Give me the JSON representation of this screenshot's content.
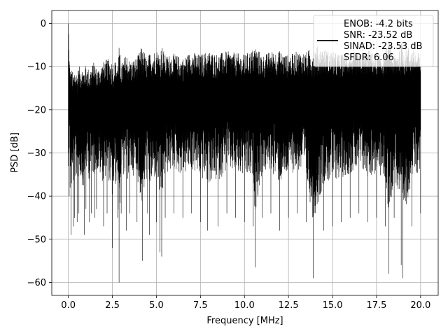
{
  "chart_data": {
    "type": "line",
    "title": "",
    "xlabel": "Frequency [MHz]",
    "ylabel": "PSD [dB]",
    "xlim": [
      -0.94,
      21.0
    ],
    "ylim": [
      -63.0,
      3.0
    ],
    "xticks": [
      0.0,
      2.5,
      5.0,
      7.5,
      10.0,
      12.5,
      15.0,
      17.5,
      20.0
    ],
    "xtick_labels": [
      "0.0",
      "2.5",
      "5.0",
      "7.5",
      "10.0",
      "12.5",
      "15.0",
      "17.5",
      "20.0"
    ],
    "yticks": [
      0,
      -10,
      -20,
      -30,
      -40,
      -50,
      -60
    ],
    "ytick_labels": [
      "0",
      "−10",
      "−20",
      "−30",
      "−40",
      "−50",
      "−60"
    ],
    "grid": true,
    "legend_position": "top-right",
    "legend_lines": [
      "ENOB: -4.2 bits",
      "SNR: -23.52 dB",
      "SINAD: -23.53 dB",
      "SFDR: 6.06"
    ],
    "series_color": "#000000",
    "series": [
      {
        "x": [
          0.0,
          0.02,
          0.05,
          0.1,
          0.15,
          0.3,
          0.35,
          0.5,
          0.6,
          0.9,
          1.0,
          1.2,
          1.3,
          1.5,
          1.6,
          2.0,
          2.2,
          2.5,
          2.8,
          2.88,
          3.0,
          3.3,
          3.5,
          3.9,
          4.2,
          4.5,
          4.6,
          5.0,
          5.2,
          5.3,
          5.5,
          6.0,
          6.5,
          7.0,
          7.5,
          7.9,
          8.5,
          9.0,
          9.5,
          10.0,
          10.5,
          10.6,
          11.0,
          11.5,
          12.0,
          12.5,
          13.0,
          13.5,
          13.9,
          14.5,
          15.0,
          15.5,
          16.0,
          16.5,
          17.0,
          17.5,
          18.0,
          18.2,
          18.5,
          18.9,
          19.0,
          19.5,
          20.0
        ],
        "y_upper": [
          0.0,
          -8.0,
          -12.0,
          -15.0,
          -16.0,
          -17.0,
          -15.5,
          -16.5,
          -15.0,
          -16.0,
          -14.5,
          -16.0,
          -15.0,
          -14.0,
          -15.5,
          -14.5,
          -13.5,
          -15.0,
          -14.0,
          -13.5,
          -14.5,
          -13.0,
          -14.0,
          -13.5,
          -12.5,
          -14.0,
          -13.0,
          -12.0,
          -13.5,
          -12.0,
          -13.0,
          -12.5,
          -13.5,
          -12.0,
          -13.0,
          -12.5,
          -13.0,
          -12.0,
          -12.5,
          -13.0,
          -12.0,
          -12.5,
          -13.0,
          -12.0,
          -12.5,
          -13.0,
          -12.0,
          -12.5,
          -13.0,
          -12.0,
          -12.5,
          -13.0,
          -12.0,
          -12.5,
          -12.0,
          -13.0,
          -12.5,
          -12.0,
          -13.0,
          -12.0,
          -12.5,
          -12.0,
          -12.5
        ],
        "y_lower": [
          -33.0,
          -30.0,
          -40.0,
          -38.0,
          -49.0,
          -47.0,
          -45.0,
          -46.0,
          -44.0,
          -49.0,
          -43.0,
          -46.0,
          -44.0,
          -45.0,
          -43.0,
          -47.0,
          -44.0,
          -52.0,
          -45.0,
          -60.0,
          -44.0,
          -48.0,
          -44.0,
          -46.0,
          -55.0,
          -44.0,
          -49.0,
          -46.0,
          -53.0,
          -54.0,
          -45.0,
          -44.0,
          -45.0,
          -44.0,
          -46.0,
          -48.0,
          -47.0,
          -44.0,
          -45.0,
          -46.0,
          -47.0,
          -56.5,
          -45.0,
          -44.0,
          -48.0,
          -45.0,
          -44.0,
          -46.0,
          -59.0,
          -48.0,
          -47.0,
          -46.0,
          -45.0,
          -44.0,
          -46.0,
          -45.0,
          -47.0,
          -58.0,
          -45.0,
          -56.0,
          -59.0,
          -47.0,
          -44.0
        ]
      }
    ]
  }
}
